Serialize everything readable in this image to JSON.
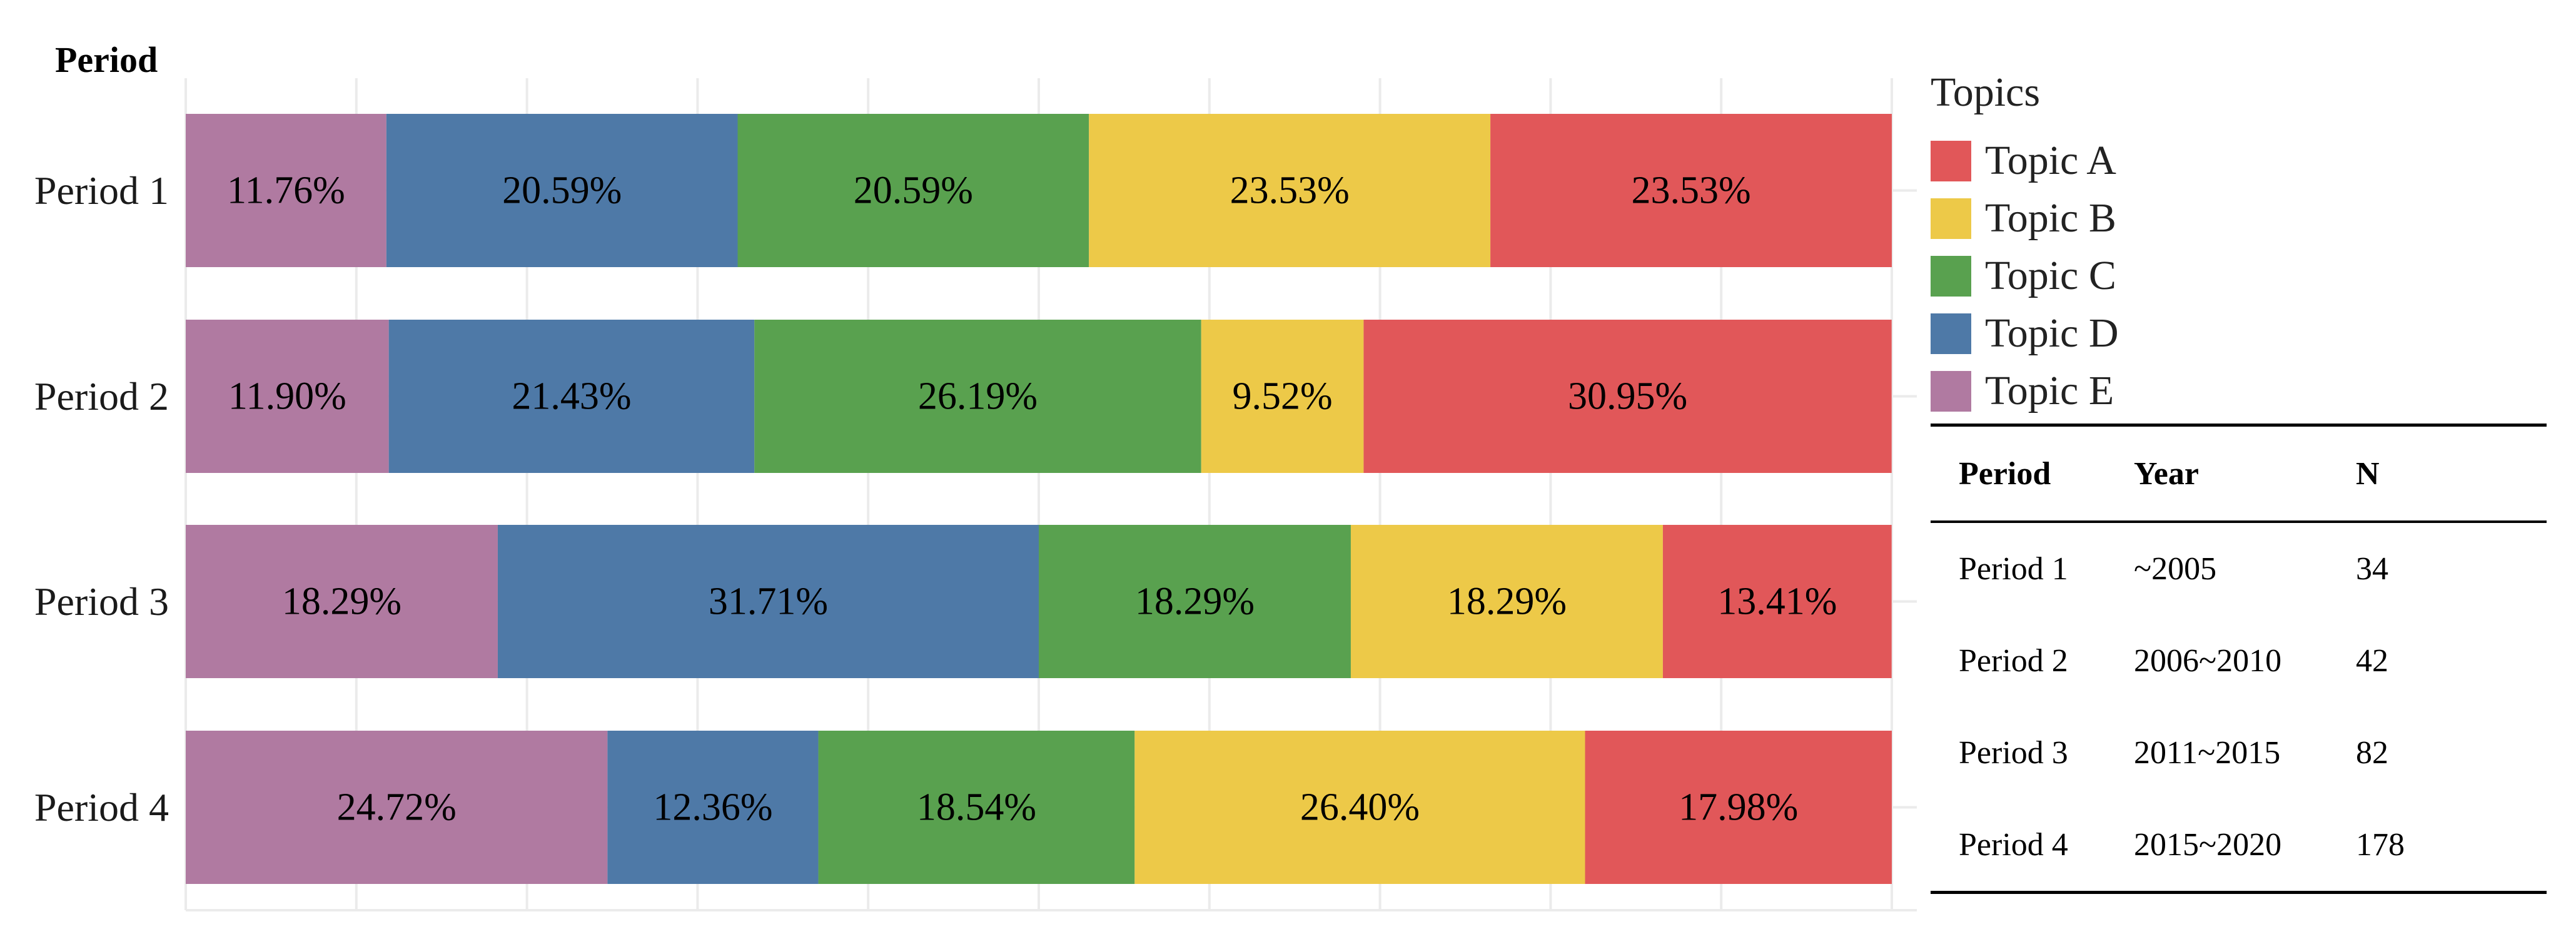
{
  "chart_data": {
    "type": "bar",
    "orientation": "horizontal",
    "stacked": true,
    "percent": true,
    "ylabel": "Period",
    "categories": [
      "Period 1",
      "Period 2",
      "Period 3",
      "Period 4"
    ],
    "series": [
      {
        "name": "Topic E",
        "color": "#B07AA1",
        "values": [
          11.76,
          11.9,
          18.29,
          24.72
        ],
        "labels": [
          "11.76%",
          "11.90%",
          "18.29%",
          "24.72%"
        ]
      },
      {
        "name": "Topic D",
        "color": "#4E79A7",
        "values": [
          20.59,
          21.43,
          31.71,
          12.36
        ],
        "labels": [
          "20.59%",
          "21.43%",
          "31.71%",
          "12.36%"
        ]
      },
      {
        "name": "Topic C",
        "color": "#59A14F",
        "values": [
          20.59,
          26.19,
          18.29,
          18.54
        ],
        "labels": [
          "20.59%",
          "26.19%",
          "18.29%",
          "18.54%"
        ]
      },
      {
        "name": "Topic B",
        "color": "#EDC948",
        "values": [
          23.53,
          9.52,
          18.29,
          26.4
        ],
        "labels": [
          "23.53%",
          "9.52%",
          "18.29%",
          "26.40%"
        ]
      },
      {
        "name": "Topic A",
        "color": "#E15759",
        "values": [
          23.53,
          30.95,
          13.41,
          17.98
        ],
        "labels": [
          "23.53%",
          "30.95%",
          "13.41%",
          "17.98%"
        ]
      }
    ],
    "xlim": [
      0,
      100
    ],
    "grid": true,
    "legend_position": "top-right"
  },
  "legend": {
    "title": "Topics",
    "items": [
      {
        "label": "Topic A",
        "color": "#E15759"
      },
      {
        "label": "Topic B",
        "color": "#EDC948"
      },
      {
        "label": "Topic C",
        "color": "#59A14F"
      },
      {
        "label": "Topic D",
        "color": "#4E79A7"
      },
      {
        "label": "Topic E",
        "color": "#B07AA1"
      }
    ]
  },
  "table": {
    "headers": [
      "Period",
      "Year",
      "N"
    ],
    "rows": [
      [
        "Period 1",
        "~2005",
        "34"
      ],
      [
        "Period 2",
        "2006~2010",
        "42"
      ],
      [
        "Period 3",
        "2011~2015",
        "82"
      ],
      [
        "Period 4",
        "2015~2020",
        "178"
      ]
    ]
  }
}
